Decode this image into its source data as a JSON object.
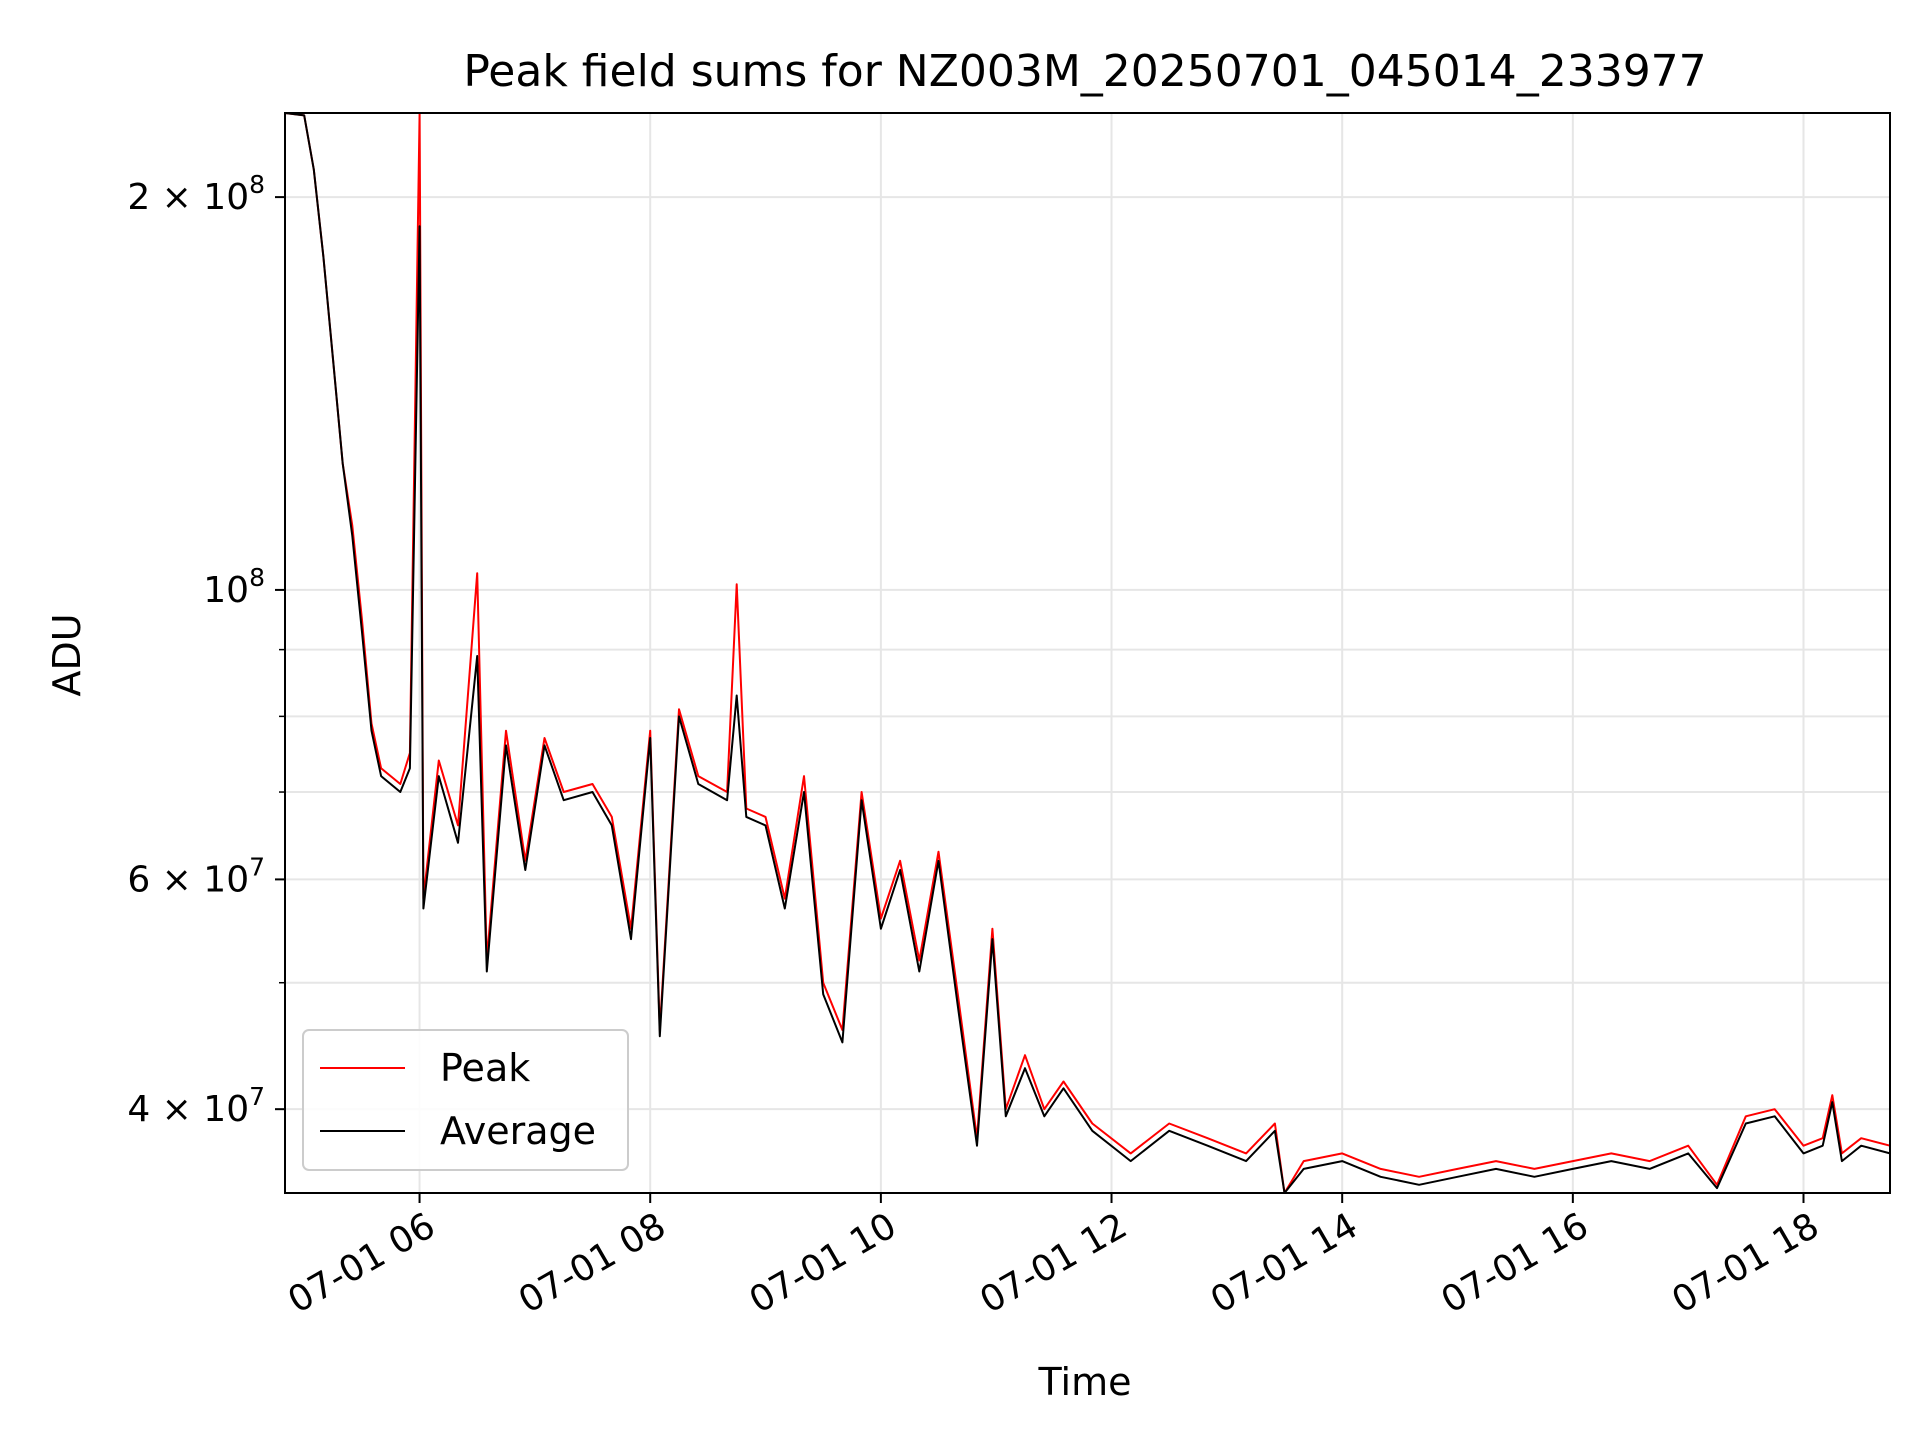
{
  "chart_data": {
    "type": "line",
    "title": "Peak field sums for NZ003M_20250701_045014_233977",
    "xlabel": "Time",
    "ylabel": "ADU",
    "yscale": "log",
    "xlim": [
      "2025-07-01 04:50",
      "2025-07-01 18:45"
    ],
    "ylim": [
      34500000,
      232000000
    ],
    "grid": true,
    "legend_position": "lower-left",
    "x_ticks": [
      {
        "value": "2025-07-01 06:00",
        "label": "07-01 06"
      },
      {
        "value": "2025-07-01 08:00",
        "label": "07-01 08"
      },
      {
        "value": "2025-07-01 10:00",
        "label": "07-01 10"
      },
      {
        "value": "2025-07-01 12:00",
        "label": "07-01 12"
      },
      {
        "value": "2025-07-01 14:00",
        "label": "07-01 14"
      },
      {
        "value": "2025-07-01 16:00",
        "label": "07-01 16"
      },
      {
        "value": "2025-07-01 18:00",
        "label": "07-01 18"
      }
    ],
    "y_ticks": [
      {
        "value": 40000000,
        "mantissa": "4",
        "exponent": "7"
      },
      {
        "value": 60000000,
        "mantissa": "6",
        "exponent": "7"
      },
      {
        "value": 100000000,
        "mantissa": "",
        "exponent": "8"
      },
      {
        "value": 200000000,
        "mantissa": "2",
        "exponent": "8"
      }
    ],
    "y_minor_ticks": [
      50000000,
      70000000,
      80000000,
      90000000
    ],
    "series": [
      {
        "name": "Peak",
        "color": "#ff0000",
        "points": [
          [
            "2025-07-01 04:50",
            232000000
          ],
          [
            "2025-07-01 05:00",
            231000000
          ],
          [
            "2025-07-01 05:05",
            210000000
          ],
          [
            "2025-07-01 05:10",
            180000000
          ],
          [
            "2025-07-01 05:15",
            150000000
          ],
          [
            "2025-07-01 05:20",
            125000000
          ],
          [
            "2025-07-01 05:25",
            112000000
          ],
          [
            "2025-07-01 05:30",
            95000000
          ],
          [
            "2025-07-01 05:35",
            79000000
          ],
          [
            "2025-07-01 05:40",
            73000000
          ],
          [
            "2025-07-01 05:50",
            71000000
          ],
          [
            "2025-07-01 05:55",
            75000000
          ],
          [
            "2025-07-01 06:00",
            232000000
          ],
          [
            "2025-07-01 06:02",
            58000000
          ],
          [
            "2025-07-01 06:10",
            74000000
          ],
          [
            "2025-07-01 06:20",
            66000000
          ],
          [
            "2025-07-01 06:30",
            103000000
          ],
          [
            "2025-07-01 06:35",
            52000000
          ],
          [
            "2025-07-01 06:45",
            78000000
          ],
          [
            "2025-07-01 06:55",
            62000000
          ],
          [
            "2025-07-01 07:05",
            77000000
          ],
          [
            "2025-07-01 07:15",
            70000000
          ],
          [
            "2025-07-01 07:30",
            71000000
          ],
          [
            "2025-07-01 07:40",
            67000000
          ],
          [
            "2025-07-01 07:50",
            55000000
          ],
          [
            "2025-07-01 08:00",
            78000000
          ],
          [
            "2025-07-01 08:05",
            46000000
          ],
          [
            "2025-07-01 08:15",
            81000000
          ],
          [
            "2025-07-01 08:25",
            72000000
          ],
          [
            "2025-07-01 08:40",
            70000000
          ],
          [
            "2025-07-01 08:45",
            101000000
          ],
          [
            "2025-07-01 08:50",
            68000000
          ],
          [
            "2025-07-01 09:00",
            67000000
          ],
          [
            "2025-07-01 09:10",
            58000000
          ],
          [
            "2025-07-01 09:20",
            72000000
          ],
          [
            "2025-07-01 09:30",
            50000000
          ],
          [
            "2025-07-01 09:40",
            46000000
          ],
          [
            "2025-07-01 09:50",
            70000000
          ],
          [
            "2025-07-01 10:00",
            56000000
          ],
          [
            "2025-07-01 10:10",
            62000000
          ],
          [
            "2025-07-01 10:20",
            52000000
          ],
          [
            "2025-07-01 10:30",
            63000000
          ],
          [
            "2025-07-01 10:40",
            49000000
          ],
          [
            "2025-07-01 10:50",
            38000000
          ],
          [
            "2025-07-01 10:58",
            55000000
          ],
          [
            "2025-07-01 11:05",
            40000000
          ],
          [
            "2025-07-01 11:15",
            44000000
          ],
          [
            "2025-07-01 11:25",
            40000000
          ],
          [
            "2025-07-01 11:35",
            42000000
          ],
          [
            "2025-07-01 11:50",
            39000000
          ],
          [
            "2025-07-01 12:10",
            37000000
          ],
          [
            "2025-07-01 12:30",
            39000000
          ],
          [
            "2025-07-01 12:50",
            38000000
          ],
          [
            "2025-07-01 13:10",
            37000000
          ],
          [
            "2025-07-01 13:25",
            39000000
          ],
          [
            "2025-07-01 13:30",
            34500000
          ],
          [
            "2025-07-01 13:40",
            36500000
          ],
          [
            "2025-07-01 14:00",
            37000000
          ],
          [
            "2025-07-01 14:20",
            36000000
          ],
          [
            "2025-07-01 14:40",
            35500000
          ],
          [
            "2025-07-01 15:00",
            36000000
          ],
          [
            "2025-07-01 15:20",
            36500000
          ],
          [
            "2025-07-01 15:40",
            36000000
          ],
          [
            "2025-07-01 16:00",
            36500000
          ],
          [
            "2025-07-01 16:20",
            37000000
          ],
          [
            "2025-07-01 16:40",
            36500000
          ],
          [
            "2025-07-01 17:00",
            37500000
          ],
          [
            "2025-07-01 17:15",
            35000000
          ],
          [
            "2025-07-01 17:30",
            39500000
          ],
          [
            "2025-07-01 17:45",
            40000000
          ],
          [
            "2025-07-01 18:00",
            37500000
          ],
          [
            "2025-07-01 18:10",
            38000000
          ],
          [
            "2025-07-01 18:15",
            41000000
          ],
          [
            "2025-07-01 18:20",
            37000000
          ],
          [
            "2025-07-01 18:25",
            37500000
          ],
          [
            "2025-07-01 18:30",
            38000000
          ],
          [
            "2025-07-01 18:45",
            37500000
          ]
        ]
      },
      {
        "name": "Average",
        "color": "#000000",
        "points": [
          [
            "2025-07-01 04:50",
            232000000
          ],
          [
            "2025-07-01 05:00",
            231000000
          ],
          [
            "2025-07-01 05:05",
            210000000
          ],
          [
            "2025-07-01 05:10",
            180000000
          ],
          [
            "2025-07-01 05:15",
            150000000
          ],
          [
            "2025-07-01 05:20",
            125000000
          ],
          [
            "2025-07-01 05:25",
            110000000
          ],
          [
            "2025-07-01 05:30",
            93000000
          ],
          [
            "2025-07-01 05:35",
            78000000
          ],
          [
            "2025-07-01 05:40",
            72000000
          ],
          [
            "2025-07-01 05:50",
            70000000
          ],
          [
            "2025-07-01 05:55",
            73000000
          ],
          [
            "2025-07-01 06:00",
            190000000
          ],
          [
            "2025-07-01 06:02",
            57000000
          ],
          [
            "2025-07-01 06:10",
            72000000
          ],
          [
            "2025-07-01 06:20",
            64000000
          ],
          [
            "2025-07-01 06:30",
            89000000
          ],
          [
            "2025-07-01 06:35",
            51000000
          ],
          [
            "2025-07-01 06:45",
            76000000
          ],
          [
            "2025-07-01 06:55",
            61000000
          ],
          [
            "2025-07-01 07:05",
            76000000
          ],
          [
            "2025-07-01 07:15",
            69000000
          ],
          [
            "2025-07-01 07:30",
            70000000
          ],
          [
            "2025-07-01 07:40",
            66000000
          ],
          [
            "2025-07-01 07:50",
            54000000
          ],
          [
            "2025-07-01 08:00",
            77000000
          ],
          [
            "2025-07-01 08:05",
            45500000
          ],
          [
            "2025-07-01 08:15",
            80000000
          ],
          [
            "2025-07-01 08:25",
            71000000
          ],
          [
            "2025-07-01 08:40",
            69000000
          ],
          [
            "2025-07-01 08:45",
            83000000
          ],
          [
            "2025-07-01 08:50",
            67000000
          ],
          [
            "2025-07-01 09:00",
            66000000
          ],
          [
            "2025-07-01 09:10",
            57000000
          ],
          [
            "2025-07-01 09:20",
            70000000
          ],
          [
            "2025-07-01 09:30",
            49000000
          ],
          [
            "2025-07-01 09:40",
            45000000
          ],
          [
            "2025-07-01 09:50",
            69000000
          ],
          [
            "2025-07-01 10:00",
            55000000
          ],
          [
            "2025-07-01 10:10",
            61000000
          ],
          [
            "2025-07-01 10:20",
            51000000
          ],
          [
            "2025-07-01 10:30",
            62000000
          ],
          [
            "2025-07-01 10:40",
            48000000
          ],
          [
            "2025-07-01 10:50",
            37500000
          ],
          [
            "2025-07-01 10:58",
            54000000
          ],
          [
            "2025-07-01 11:05",
            39500000
          ],
          [
            "2025-07-01 11:15",
            43000000
          ],
          [
            "2025-07-01 11:25",
            39500000
          ],
          [
            "2025-07-01 11:35",
            41500000
          ],
          [
            "2025-07-01 11:50",
            38500000
          ],
          [
            "2025-07-01 12:10",
            36500000
          ],
          [
            "2025-07-01 12:30",
            38500000
          ],
          [
            "2025-07-01 12:50",
            37500000
          ],
          [
            "2025-07-01 13:10",
            36500000
          ],
          [
            "2025-07-01 13:25",
            38500000
          ],
          [
            "2025-07-01 13:30",
            34500000
          ],
          [
            "2025-07-01 13:40",
            36000000
          ],
          [
            "2025-07-01 14:00",
            36500000
          ],
          [
            "2025-07-01 14:20",
            35500000
          ],
          [
            "2025-07-01 14:40",
            35000000
          ],
          [
            "2025-07-01 15:00",
            35500000
          ],
          [
            "2025-07-01 15:20",
            36000000
          ],
          [
            "2025-07-01 15:40",
            35500000
          ],
          [
            "2025-07-01 16:00",
            36000000
          ],
          [
            "2025-07-01 16:20",
            36500000
          ],
          [
            "2025-07-01 16:40",
            36000000
          ],
          [
            "2025-07-01 17:00",
            37000000
          ],
          [
            "2025-07-01 17:15",
            34800000
          ],
          [
            "2025-07-01 17:30",
            39000000
          ],
          [
            "2025-07-01 17:45",
            39500000
          ],
          [
            "2025-07-01 18:00",
            37000000
          ],
          [
            "2025-07-01 18:10",
            37500000
          ],
          [
            "2025-07-01 18:15",
            40500000
          ],
          [
            "2025-07-01 18:20",
            36500000
          ],
          [
            "2025-07-01 18:25",
            37000000
          ],
          [
            "2025-07-01 18:30",
            37500000
          ],
          [
            "2025-07-01 18:45",
            37000000
          ]
        ]
      }
    ]
  }
}
